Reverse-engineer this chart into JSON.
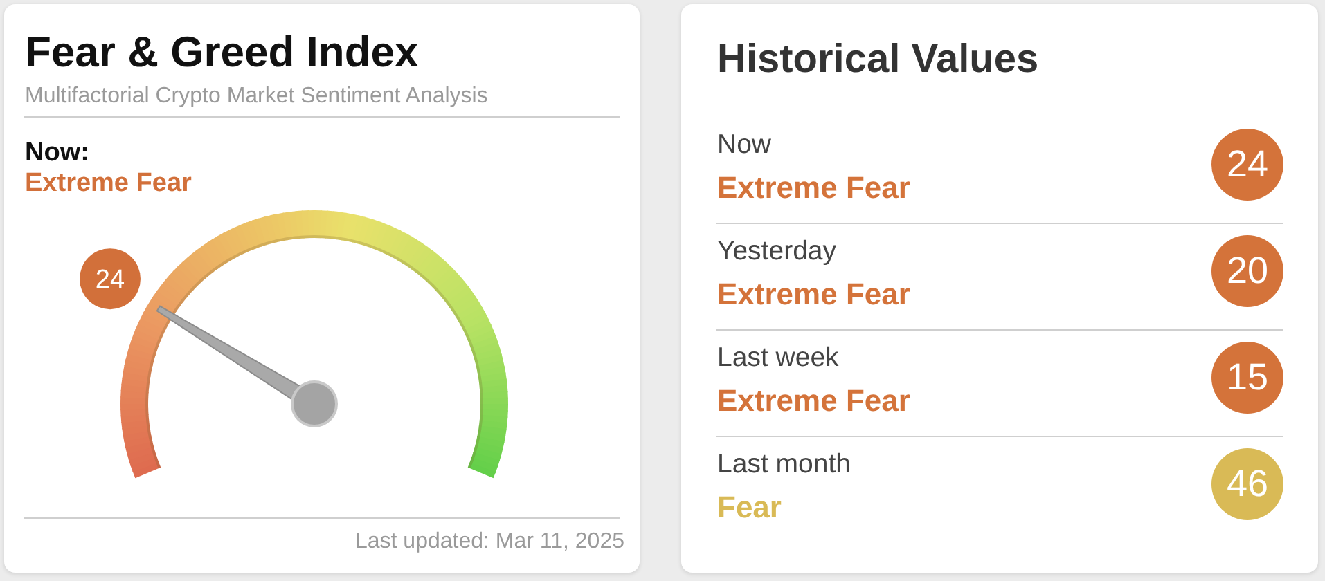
{
  "chart_data": [
    {
      "type": "other",
      "title": "Fear & Greed Index",
      "subtitle": "Multifactorial Crypto Market Sentiment Analysis",
      "annotations": [
        "Now:",
        "Extreme Fear",
        "Last updated: Mar 11, 2025"
      ],
      "values": [
        24
      ],
      "color": "#d2703a",
      "data_labels": true
    },
    {
      "type": "other",
      "title": "Historical Values",
      "categories": [
        "Now",
        "Yesterday",
        "Last week",
        "Last month"
      ],
      "values": [
        24,
        20,
        15,
        46
      ],
      "colors": [
        "#d4733a",
        "#d4733a",
        "#d4733a",
        "#d9ba56"
      ],
      "annotations": [
        "Extreme Fear",
        "Extreme Fear",
        "Extreme Fear",
        "Fear"
      ],
      "data_labels": true
    }
  ]
}
